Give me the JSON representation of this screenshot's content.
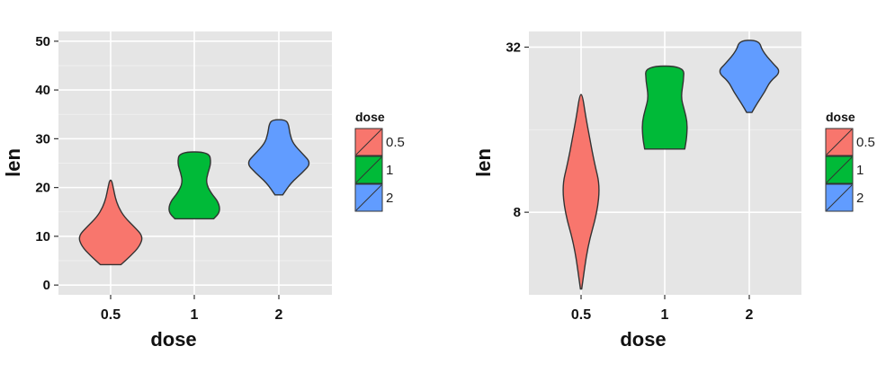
{
  "chart_data": [
    {
      "type": "violin",
      "xlabel": "dose",
      "ylabel": "len",
      "categories": [
        "0.5",
        "1",
        "2"
      ],
      "y_scale": "linear",
      "ylim": [
        -2,
        52
      ],
      "yticks": [
        0,
        10,
        20,
        30,
        40,
        50
      ],
      "ytick_labels": [
        "0",
        "10",
        "20",
        "30",
        "40",
        "50"
      ],
      "grid": true,
      "legend": {
        "title": "dose",
        "position": "right",
        "entries": [
          "0.5",
          "1",
          "2"
        ]
      },
      "series": [
        {
          "category": "0.5",
          "min": 4.2,
          "max": 21.5,
          "profile": [
            [
              4.2,
              0.32
            ],
            [
              6,
              0.62
            ],
            [
              8,
              0.9
            ],
            [
              10,
              1.0
            ],
            [
              12,
              0.72
            ],
            [
              14,
              0.42
            ],
            [
              16,
              0.24
            ],
            [
              18,
              0.14
            ],
            [
              20,
              0.08
            ],
            [
              21.5,
              0.03
            ]
          ]
        },
        {
          "category": "1",
          "min": 13.6,
          "max": 27.3,
          "profile": [
            [
              13.6,
              0.6
            ],
            [
              15,
              0.8
            ],
            [
              17,
              0.75
            ],
            [
              19,
              0.5
            ],
            [
              21,
              0.36
            ],
            [
              23,
              0.42
            ],
            [
              25,
              0.52
            ],
            [
              27.3,
              0.46
            ]
          ]
        },
        {
          "category": "2",
          "min": 18.5,
          "max": 33.9,
          "profile": [
            [
              18.5,
              0.12
            ],
            [
              21,
              0.38
            ],
            [
              23,
              0.72
            ],
            [
              25,
              1.0
            ],
            [
              27,
              0.72
            ],
            [
              29,
              0.44
            ],
            [
              31,
              0.34
            ],
            [
              33,
              0.3
            ],
            [
              33.9,
              0.2
            ]
          ]
        }
      ],
      "colors": [
        "#F8766D",
        "#00BA38",
        "#619CFF"
      ]
    },
    {
      "type": "violin",
      "xlabel": "dose",
      "ylabel": "len",
      "categories": [
        "0.5",
        "1",
        "2"
      ],
      "y_scale": "log2",
      "ylim": [
        4.0,
        36.5
      ],
      "yticks": [
        8,
        32
      ],
      "ytick_labels": [
        "8",
        "32"
      ],
      "grid": true,
      "legend": {
        "title": "dose",
        "position": "right",
        "entries": [
          "0.5",
          "1",
          "2"
        ]
      },
      "series": [
        {
          "category": "0.5",
          "min": 4.2,
          "max": 21.5,
          "profile": [
            [
              4.2,
              0.02
            ],
            [
              6,
              0.2
            ],
            [
              8,
              0.5
            ],
            [
              10,
              0.58
            ],
            [
              12,
              0.42
            ],
            [
              15,
              0.26
            ],
            [
              18,
              0.14
            ],
            [
              21.5,
              0.04
            ]
          ]
        },
        {
          "category": "1",
          "min": 13.6,
          "max": 27.3,
          "profile": [
            [
              13.6,
              0.62
            ],
            [
              15,
              0.68
            ],
            [
              17,
              0.7
            ],
            [
              19,
              0.6
            ],
            [
              21,
              0.5
            ],
            [
              24,
              0.58
            ],
            [
              27.3,
              0.6
            ]
          ]
        },
        {
          "category": "2",
          "min": 18.5,
          "max": 33.9,
          "profile": [
            [
              18.5,
              0.08
            ],
            [
              20,
              0.25
            ],
            [
              22,
              0.48
            ],
            [
              24,
              0.64
            ],
            [
              26,
              0.98
            ],
            [
              28,
              0.72
            ],
            [
              31,
              0.4
            ],
            [
              33.9,
              0.3
            ]
          ]
        }
      ],
      "colors": [
        "#F8766D",
        "#00BA38",
        "#619CFF"
      ]
    }
  ]
}
